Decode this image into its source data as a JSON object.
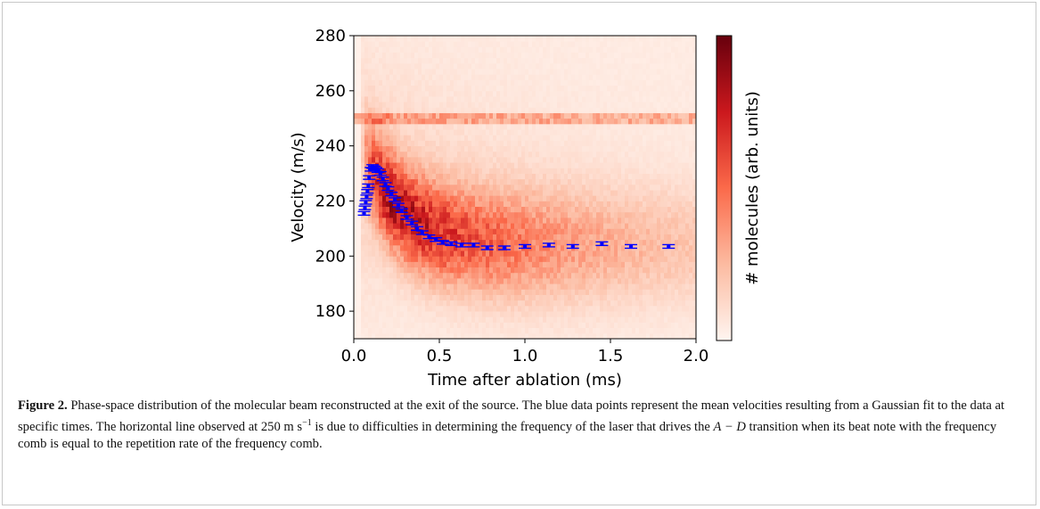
{
  "chart_data": {
    "type": "heatmap",
    "xlabel": "Time after ablation (ms)",
    "ylabel": "Velocity (m/s)",
    "colorbar_label": "# molecules (arb. units)",
    "xlim": [
      0.0,
      2.0
    ],
    "ylim": [
      170,
      280
    ],
    "x_ticks": [
      0.0,
      0.5,
      1.0,
      1.5,
      2.0
    ],
    "x_tick_labels": [
      "0.0",
      "0.5",
      "1.0",
      "1.5",
      "2.0"
    ],
    "y_ticks": [
      180,
      200,
      220,
      240,
      260,
      280
    ],
    "y_tick_labels": [
      "180",
      "200",
      "220",
      "240",
      "260",
      "280"
    ],
    "colormap": [
      "#fff5f0",
      "#fcbba1",
      "#fb6a4a",
      "#cb181d",
      "#67000d"
    ],
    "background_stripe_velocity": 250,
    "series": [
      {
        "marker_color": "#0000ff",
        "points": [
          {
            "x": 0.06,
            "y": 215.5
          },
          {
            "x": 0.065,
            "y": 217.5
          },
          {
            "x": 0.07,
            "y": 219.5
          },
          {
            "x": 0.075,
            "y": 221.5
          },
          {
            "x": 0.08,
            "y": 223.5
          },
          {
            "x": 0.085,
            "y": 225.5
          },
          {
            "x": 0.09,
            "y": 228.5
          },
          {
            "x": 0.1,
            "y": 231.5
          },
          {
            "x": 0.11,
            "y": 232.5
          },
          {
            "x": 0.12,
            "y": 232.0
          },
          {
            "x": 0.13,
            "y": 231.5
          },
          {
            "x": 0.14,
            "y": 231.0
          },
          {
            "x": 0.155,
            "y": 230.0
          },
          {
            "x": 0.17,
            "y": 228.0
          },
          {
            "x": 0.185,
            "y": 226.0
          },
          {
            "x": 0.2,
            "y": 224.5
          },
          {
            "x": 0.22,
            "y": 222.5
          },
          {
            "x": 0.24,
            "y": 220.5
          },
          {
            "x": 0.26,
            "y": 218.5
          },
          {
            "x": 0.28,
            "y": 216.5
          },
          {
            "x": 0.31,
            "y": 214.0
          },
          {
            "x": 0.34,
            "y": 212.0
          },
          {
            "x": 0.37,
            "y": 210.0
          },
          {
            "x": 0.4,
            "y": 208.5
          },
          {
            "x": 0.44,
            "y": 207.0
          },
          {
            "x": 0.48,
            "y": 206.0
          },
          {
            "x": 0.52,
            "y": 205.0
          },
          {
            "x": 0.57,
            "y": 204.5
          },
          {
            "x": 0.63,
            "y": 204.0
          },
          {
            "x": 0.7,
            "y": 204.0
          },
          {
            "x": 0.78,
            "y": 203.0
          },
          {
            "x": 0.88,
            "y": 203.0
          },
          {
            "x": 1.0,
            "y": 203.5
          },
          {
            "x": 1.14,
            "y": 204.0
          },
          {
            "x": 1.28,
            "y": 203.5
          },
          {
            "x": 1.45,
            "y": 204.5
          },
          {
            "x": 1.62,
            "y": 203.5
          },
          {
            "x": 1.84,
            "y": 203.5
          }
        ]
      }
    ]
  },
  "caption": {
    "label": "Figure 2.",
    "text_before_unit": " Phase-space distribution of the molecular beam reconstructed at the exit of the source. The blue data points represent the mean velocities resulting from a Gaussian fit to the data at specific times. The horizontal line observed at 250 m s",
    "unit_exponent": "−1",
    "text_before_math": " is due to difficulties in determining the frequency of the laser that drives the ",
    "math": "A − D",
    "text_after_math": " transition when its beat note with the frequency comb is equal to the repetition rate of the frequency comb."
  }
}
